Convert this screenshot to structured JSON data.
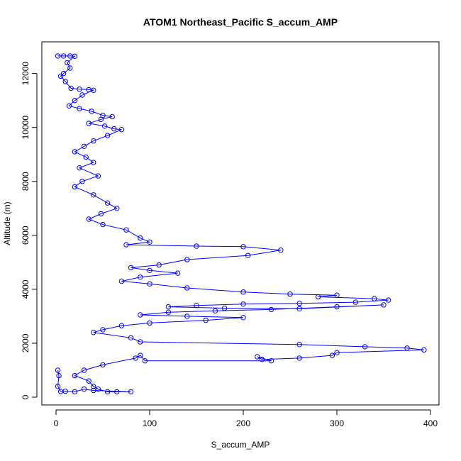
{
  "chart_data": {
    "type": "line",
    "title": "ATOM1 Northeast_Pacific S_accum_AMP",
    "xlabel": "S_accum_AMP",
    "ylabel": "Altitude (m)",
    "xlim": [
      0,
      400
    ],
    "ylim": [
      0,
      12700
    ],
    "x_ticks": [
      "0",
      "100",
      "200",
      "300",
      "400"
    ],
    "y_ticks": [
      "0",
      "2000",
      "4000",
      "6000",
      "8000",
      "10000",
      "12000"
    ],
    "grid": false,
    "legend": "none",
    "marker": "open-circle",
    "series": [
      {
        "color": "#0000ff",
        "points": [
          [
            2,
            12650
          ],
          [
            8,
            12650
          ],
          [
            15,
            12650
          ],
          [
            20,
            12640
          ],
          [
            12,
            12400
          ],
          [
            15,
            12200
          ],
          [
            8,
            12000
          ],
          [
            5,
            11900
          ],
          [
            10,
            11700
          ],
          [
            16,
            11450
          ],
          [
            25,
            11420
          ],
          [
            35,
            11400
          ],
          [
            40,
            11380
          ],
          [
            28,
            11200
          ],
          [
            20,
            11000
          ],
          [
            14,
            10800
          ],
          [
            25,
            10700
          ],
          [
            38,
            10600
          ],
          [
            50,
            10450
          ],
          [
            60,
            10400
          ],
          [
            48,
            10300
          ],
          [
            35,
            10150
          ],
          [
            52,
            10050
          ],
          [
            62,
            9950
          ],
          [
            70,
            9920
          ],
          [
            55,
            9700
          ],
          [
            40,
            9500
          ],
          [
            30,
            9300
          ],
          [
            20,
            9100
          ],
          [
            32,
            8900
          ],
          [
            40,
            8700
          ],
          [
            25,
            8500
          ],
          [
            45,
            8200
          ],
          [
            28,
            8000
          ],
          [
            20,
            7800
          ],
          [
            40,
            7500
          ],
          [
            55,
            7200
          ],
          [
            65,
            7000
          ],
          [
            48,
            6800
          ],
          [
            35,
            6600
          ],
          [
            50,
            6400
          ],
          [
            75,
            6200
          ],
          [
            90,
            5900
          ],
          [
            100,
            5750
          ],
          [
            75,
            5650
          ],
          [
            150,
            5600
          ],
          [
            200,
            5580
          ],
          [
            240,
            5450
          ],
          [
            205,
            5250
          ],
          [
            140,
            5100
          ],
          [
            110,
            4900
          ],
          [
            80,
            4800
          ],
          [
            100,
            4700
          ],
          [
            130,
            4600
          ],
          [
            90,
            4450
          ],
          [
            70,
            4300
          ],
          [
            100,
            4200
          ],
          [
            140,
            4050
          ],
          [
            200,
            3900
          ],
          [
            250,
            3820
          ],
          [
            300,
            3780
          ],
          [
            280,
            3720
          ],
          [
            340,
            3650
          ],
          [
            355,
            3600
          ],
          [
            320,
            3520
          ],
          [
            260,
            3480
          ],
          [
            200,
            3450
          ],
          [
            150,
            3400
          ],
          [
            120,
            3350
          ],
          [
            180,
            3300
          ],
          [
            260,
            3280
          ],
          [
            350,
            3420
          ],
          [
            300,
            3350
          ],
          [
            230,
            3250
          ],
          [
            170,
            3200
          ],
          [
            120,
            3150
          ],
          [
            90,
            3050
          ],
          [
            140,
            3000
          ],
          [
            200,
            2950
          ],
          [
            160,
            2850
          ],
          [
            100,
            2750
          ],
          [
            70,
            2650
          ],
          [
            50,
            2500
          ],
          [
            40,
            2400
          ],
          [
            80,
            2200
          ],
          [
            90,
            2050
          ],
          [
            260,
            1950
          ],
          [
            330,
            1870
          ],
          [
            375,
            1820
          ],
          [
            393,
            1750
          ],
          [
            300,
            1650
          ],
          [
            295,
            1550
          ],
          [
            260,
            1450
          ],
          [
            220,
            1400
          ],
          [
            215,
            1500
          ],
          [
            230,
            1350
          ],
          [
            95,
            1350
          ],
          [
            90,
            1550
          ],
          [
            85,
            1450
          ],
          [
            50,
            1200
          ],
          [
            30,
            1000
          ],
          [
            20,
            800
          ],
          [
            35,
            600
          ],
          [
            40,
            400
          ],
          [
            45,
            300
          ],
          [
            55,
            200
          ],
          [
            65,
            200
          ],
          [
            80,
            200
          ],
          [
            40,
            250
          ],
          [
            30,
            300
          ],
          [
            20,
            200
          ],
          [
            10,
            220
          ],
          [
            5,
            210
          ],
          [
            2,
            400
          ],
          [
            3,
            800
          ],
          [
            2,
            1000
          ]
        ]
      }
    ]
  }
}
